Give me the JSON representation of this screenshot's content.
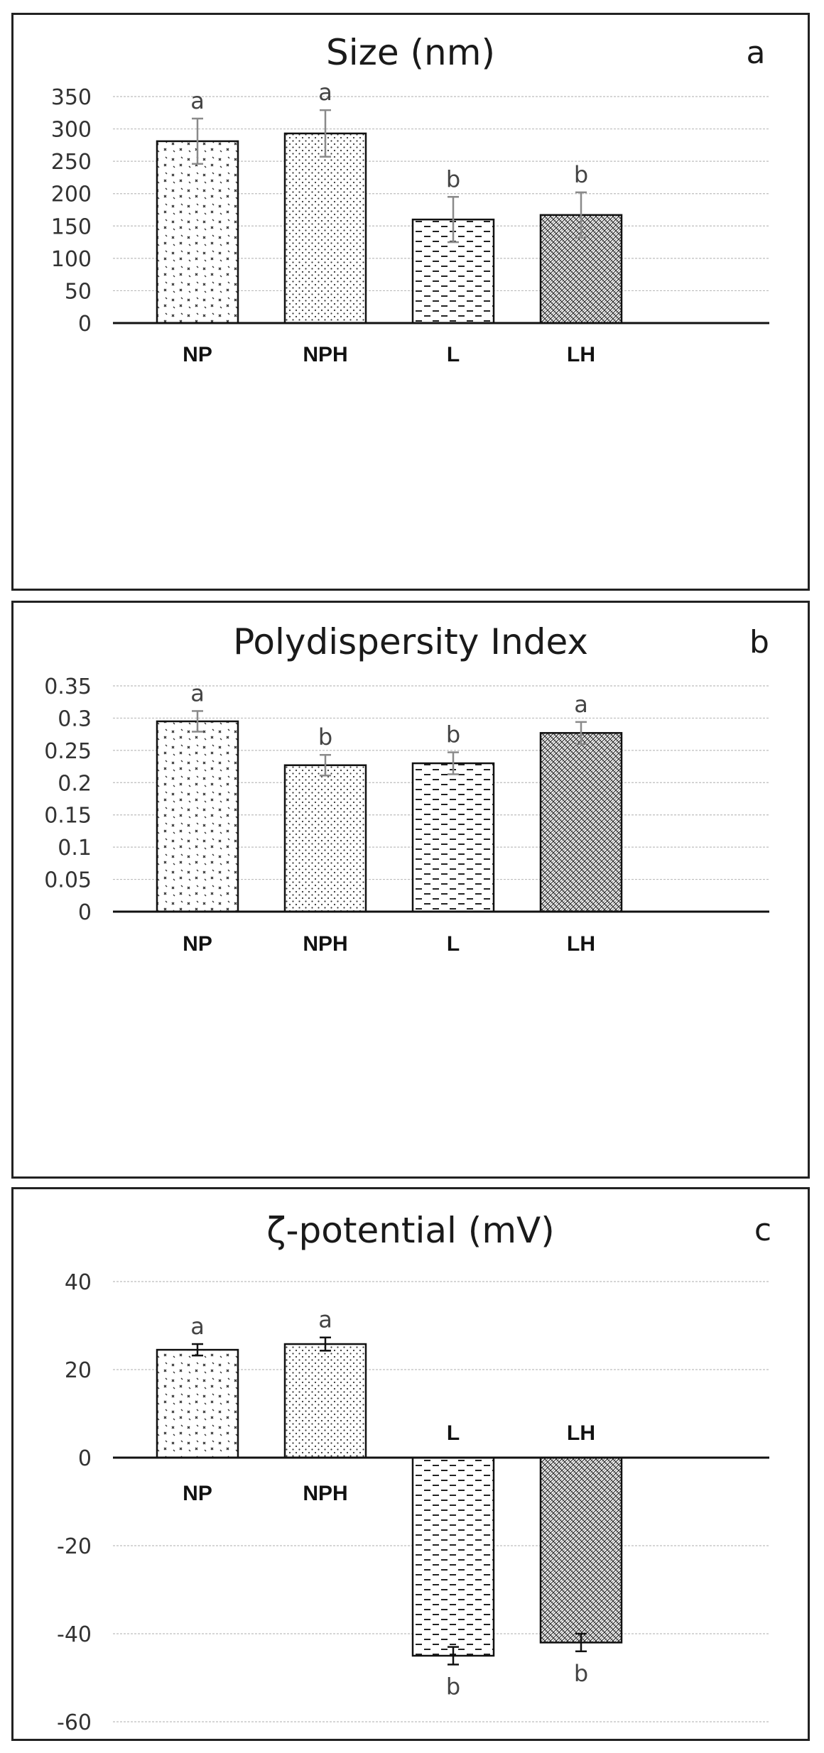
{
  "figure": {
    "panels": [
      {
        "letter": "a",
        "title": "Size (nm)"
      },
      {
        "letter": "b",
        "title": "Polydispersity Index"
      },
      {
        "letter": "c",
        "title": "ζ-potential (mV)"
      }
    ]
  },
  "chart_data": [
    {
      "type": "bar",
      "title": "Size (nm)",
      "panel_label": "a",
      "categories": [
        "NP",
        "NPH",
        "L",
        "LH"
      ],
      "values": [
        281,
        293,
        160,
        167
      ],
      "errors": [
        35,
        36,
        35,
        35
      ],
      "significance": [
        "a",
        "a",
        "b",
        "b"
      ],
      "ylim": [
        0,
        350
      ],
      "yticks": [
        0,
        50,
        100,
        150,
        200,
        250,
        300,
        350
      ],
      "ytick_labels": [
        "0",
        "50",
        "100",
        "150",
        "200",
        "250",
        "300",
        "350"
      ],
      "grid": true,
      "xlabel": "",
      "ylabel": ""
    },
    {
      "type": "bar",
      "title": "Polydispersity Index",
      "panel_label": "b",
      "categories": [
        "NP",
        "NPH",
        "L",
        "LH"
      ],
      "values": [
        0.295,
        0.227,
        0.23,
        0.277
      ],
      "errors": [
        0.016,
        0.016,
        0.017,
        0.017
      ],
      "significance": [
        "a",
        "b",
        "b",
        "a"
      ],
      "ylim": [
        0,
        0.35
      ],
      "yticks": [
        0,
        0.05,
        0.1,
        0.15,
        0.2,
        0.25,
        0.3,
        0.35
      ],
      "ytick_labels": [
        "0",
        "0.05",
        "0.1",
        "0.15",
        "0.2",
        "0.25",
        "0.3",
        "0.35"
      ],
      "grid": true,
      "xlabel": "",
      "ylabel": ""
    },
    {
      "type": "bar",
      "title": "ζ-potential (mV)",
      "panel_label": "c",
      "categories": [
        "NP",
        "NPH",
        "L",
        "LH"
      ],
      "values": [
        24.5,
        25.8,
        -45,
        -42
      ],
      "errors": [
        1.3,
        1.5,
        2,
        2
      ],
      "significance": [
        "a",
        "a",
        "b",
        "b"
      ],
      "ylim": [
        -60,
        40
      ],
      "yticks": [
        -60,
        -40,
        -20,
        0,
        20,
        40
      ],
      "ytick_labels": [
        "-60",
        "-40",
        "-20",
        "0",
        "20",
        "40"
      ],
      "grid": true,
      "xlabel": "",
      "ylabel": ""
    }
  ]
}
